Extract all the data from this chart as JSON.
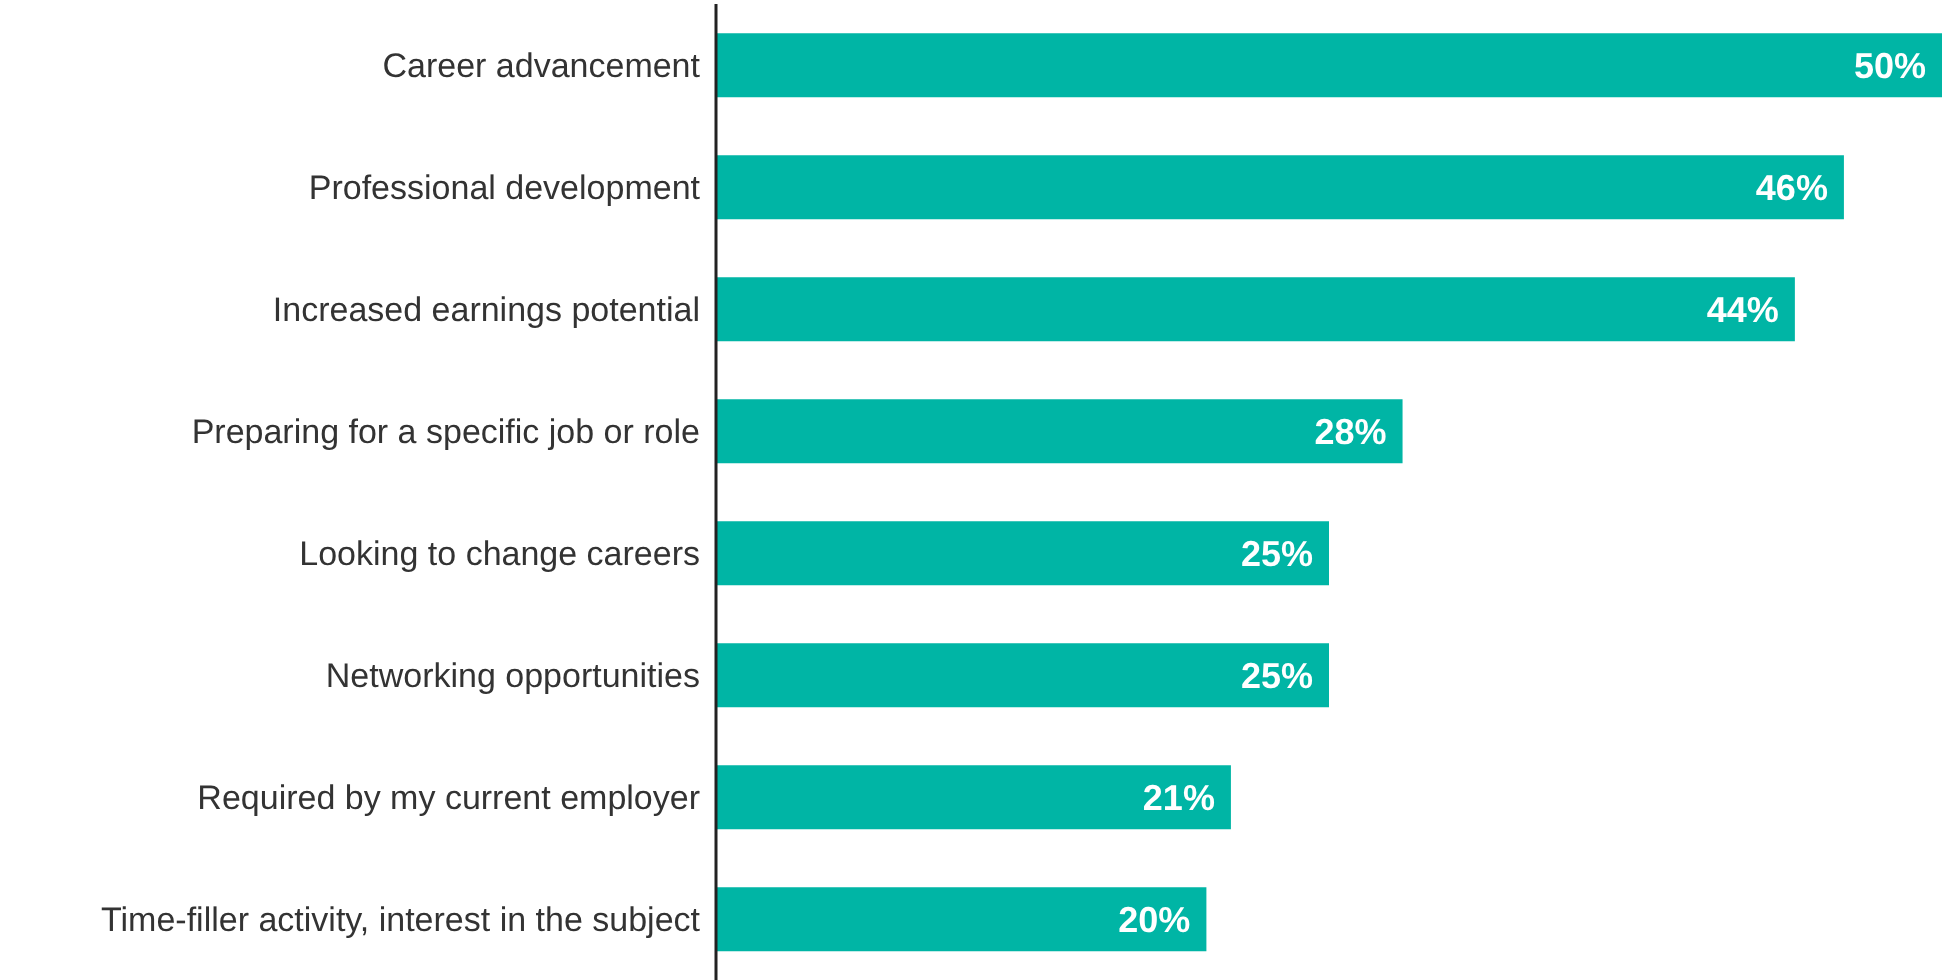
{
  "chart_data": {
    "type": "bar",
    "orientation": "horizontal",
    "categories": [
      "Career advancement",
      "Professional development",
      "Increased earnings potential",
      "Preparing for a specific job or role",
      "Looking to change careers",
      "Networking opportunities",
      "Required by my current employer",
      "Time-filler activity, interest in the subject"
    ],
    "values": [
      50,
      46,
      44,
      28,
      25,
      25,
      21,
      20
    ],
    "value_labels": [
      "50%",
      "46%",
      "44%",
      "28%",
      "25%",
      "25%",
      "21%",
      "20%"
    ],
    "color": "#00b5a5",
    "grid": false,
    "legend": false
  }
}
